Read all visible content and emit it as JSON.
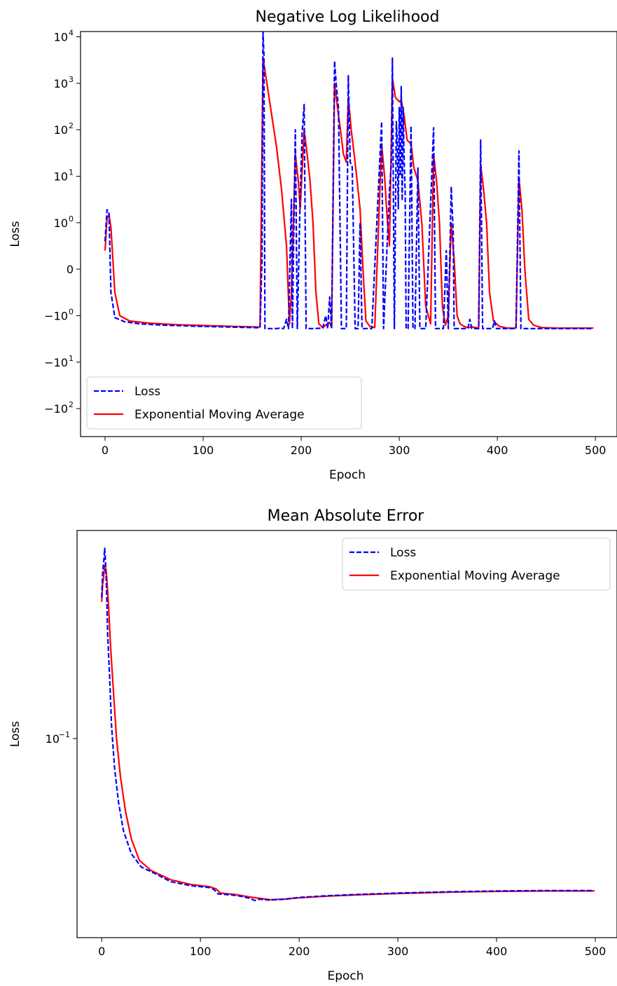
{
  "chart_data": [
    {
      "type": "line",
      "title": "Negative Log Likelihood",
      "xlabel": "Epoch",
      "ylabel": "Loss",
      "yscale": "symlog",
      "xlim": [
        -25,
        522
      ],
      "ylim": [
        -400,
        13000
      ],
      "xticks": [
        0,
        100,
        200,
        300,
        400,
        500
      ],
      "yticks": [
        {
          "value": 10000,
          "label": "10",
          "exp": "4"
        },
        {
          "value": 1000,
          "label": "10",
          "exp": "3"
        },
        {
          "value": 100,
          "label": "10",
          "exp": "2"
        },
        {
          "value": 10,
          "label": "10",
          "exp": "1"
        },
        {
          "value": 1,
          "label": "10",
          "exp": "0"
        },
        {
          "value": 0,
          "label": "0",
          "exp": ""
        },
        {
          "value": -1,
          "label": "−10",
          "exp": "0"
        },
        {
          "value": -10,
          "label": "−10",
          "exp": "1"
        },
        {
          "value": -100,
          "label": "−10",
          "exp": "2"
        }
      ],
      "legend": "lower-left",
      "series": [
        {
          "name": "Loss",
          "color": "#0000ff",
          "style": "dashed",
          "points": [
            [
              0,
              0.6
            ],
            [
              2,
              1.9
            ],
            [
              4,
              1.7
            ],
            [
              6,
              -0.5
            ],
            [
              10,
              -1.1
            ],
            [
              20,
              -1.35
            ],
            [
              35,
              -1.5
            ],
            [
              60,
              -1.6
            ],
            [
              90,
              -1.68
            ],
            [
              110,
              -1.72
            ],
            [
              140,
              -1.78
            ],
            [
              158,
              -1.82
            ],
            [
              160,
              0.2
            ],
            [
              161,
              13000
            ],
            [
              162,
              4000
            ],
            [
              163,
              -1.9
            ],
            [
              175,
              -1.9
            ],
            [
              178,
              -1.85
            ],
            [
              182,
              -1.9
            ],
            [
              185,
              -1.2
            ],
            [
              187,
              -1.9
            ],
            [
              190,
              3.2
            ],
            [
              191,
              -1.9
            ],
            [
              194,
              100
            ],
            [
              196,
              -1.9
            ],
            [
              199,
              4
            ],
            [
              201,
              90
            ],
            [
              203,
              350
            ],
            [
              205,
              -1.9
            ],
            [
              212,
              -1.9
            ],
            [
              222,
              -1.85
            ],
            [
              225,
              -1.0
            ],
            [
              227,
              -1.9
            ],
            [
              229,
              -0.6
            ],
            [
              231,
              -1.9
            ],
            [
              234,
              3000
            ],
            [
              236,
              800
            ],
            [
              238,
              300
            ],
            [
              241,
              -1.9
            ],
            [
              246,
              -1.9
            ],
            [
              248,
              1500
            ],
            [
              250,
              20
            ],
            [
              252,
              16
            ],
            [
              255,
              -1.9
            ],
            [
              258,
              -1.9
            ],
            [
              260,
              1.0
            ],
            [
              262,
              -1.9
            ],
            [
              272,
              -1.9
            ],
            [
              282,
              150
            ],
            [
              284,
              -1.9
            ],
            [
              290,
              5
            ],
            [
              292,
              20
            ],
            [
              293,
              3500
            ],
            [
              295,
              -1.9
            ],
            [
              297,
              150
            ],
            [
              298,
              50
            ],
            [
              299,
              2
            ],
            [
              300,
              300
            ],
            [
              301,
              10
            ],
            [
              302,
              850
            ],
            [
              303,
              3
            ],
            [
              304,
              300
            ],
            [
              305,
              20
            ],
            [
              306,
              5
            ],
            [
              307,
              -1.9
            ],
            [
              309,
              -1.9
            ],
            [
              312,
              120
            ],
            [
              314,
              -1.9
            ],
            [
              316,
              -1.9
            ],
            [
              319,
              15
            ],
            [
              321,
              -1.9
            ],
            [
              327,
              -1.9
            ],
            [
              335,
              110
            ],
            [
              337,
              -1.9
            ],
            [
              345,
              -1.9
            ],
            [
              348,
              0.4
            ],
            [
              350,
              -1.9
            ],
            [
              353,
              6
            ],
            [
              355,
              0.8
            ],
            [
              356,
              -1.9
            ],
            [
              358,
              -1.9
            ],
            [
              370,
              -1.9
            ],
            [
              372,
              -1.2
            ],
            [
              374,
              -1.9
            ],
            [
              381,
              -1.9
            ],
            [
              383,
              60
            ],
            [
              385,
              -1.9
            ],
            [
              395,
              -1.9
            ],
            [
              397,
              -1.3
            ],
            [
              399,
              -1.9
            ],
            [
              419,
              -1.9
            ],
            [
              422,
              35
            ],
            [
              424,
              -1.9
            ],
            [
              450,
              -1.9
            ],
            [
              475,
              -1.9
            ],
            [
              498,
              -1.9
            ]
          ]
        },
        {
          "name": "Exponential Moving Average",
          "color": "#ff0000",
          "style": "solid",
          "points": [
            [
              0,
              0.4
            ],
            [
              2,
              1.2
            ],
            [
              4,
              1.5
            ],
            [
              6,
              0.9
            ],
            [
              10,
              -0.5
            ],
            [
              15,
              -1.0
            ],
            [
              25,
              -1.3
            ],
            [
              45,
              -1.45
            ],
            [
              70,
              -1.55
            ],
            [
              100,
              -1.63
            ],
            [
              130,
              -1.7
            ],
            [
              155,
              -1.75
            ],
            [
              158,
              -1.76
            ],
            [
              161,
              3500
            ],
            [
              165,
              1000
            ],
            [
              170,
              200
            ],
            [
              175,
              40
            ],
            [
              180,
              5
            ],
            [
              185,
              0.5
            ],
            [
              188,
              -1.5
            ],
            [
              190,
              -0.5
            ],
            [
              194,
              30
            ],
            [
              197,
              8
            ],
            [
              199,
              2
            ],
            [
              203,
              100
            ],
            [
              206,
              30
            ],
            [
              209,
              8
            ],
            [
              212,
              1
            ],
            [
              215,
              -0.5
            ],
            [
              218,
              -1.5
            ],
            [
              222,
              -1.8
            ],
            [
              225,
              -1.6
            ],
            [
              229,
              -1.4
            ],
            [
              231,
              -1.8
            ],
            [
              234,
              1000
            ],
            [
              237,
              300
            ],
            [
              240,
              100
            ],
            [
              243,
              30
            ],
            [
              246,
              20
            ],
            [
              248,
              500
            ],
            [
              251,
              100
            ],
            [
              254,
              30
            ],
            [
              257,
              8
            ],
            [
              260,
              2
            ],
            [
              263,
              0
            ],
            [
              266,
              -1.3
            ],
            [
              270,
              -1.7
            ],
            [
              275,
              -1.8
            ],
            [
              282,
              50
            ],
            [
              285,
              10
            ],
            [
              288,
              1
            ],
            [
              290,
              0.5
            ],
            [
              293,
              1300
            ],
            [
              296,
              500
            ],
            [
              300,
              400
            ],
            [
              302,
              450
            ],
            [
              305,
              200
            ],
            [
              308,
              60
            ],
            [
              312,
              50
            ],
            [
              315,
              15
            ],
            [
              319,
              8
            ],
            [
              323,
              1
            ],
            [
              327,
              -0.8
            ],
            [
              332,
              -1.5
            ],
            [
              335,
              30
            ],
            [
              338,
              8
            ],
            [
              341,
              1
            ],
            [
              344,
              -0.8
            ],
            [
              347,
              -1.6
            ],
            [
              350,
              -1.0
            ],
            [
              353,
              1.0
            ],
            [
              356,
              0.2
            ],
            [
              359,
              -1.0
            ],
            [
              362,
              -1.5
            ],
            [
              366,
              -1.7
            ],
            [
              370,
              -1.8
            ],
            [
              375,
              -1.75
            ],
            [
              381,
              -1.85
            ],
            [
              383,
              18
            ],
            [
              386,
              5
            ],
            [
              389,
              1
            ],
            [
              392,
              -0.5
            ],
            [
              396,
              -1.3
            ],
            [
              402,
              -1.7
            ],
            [
              410,
              -1.85
            ],
            [
              419,
              -1.85
            ],
            [
              422,
              9
            ],
            [
              425,
              2
            ],
            [
              428,
              0
            ],
            [
              432,
              -1.2
            ],
            [
              437,
              -1.6
            ],
            [
              445,
              -1.8
            ],
            [
              460,
              -1.85
            ],
            [
              480,
              -1.85
            ],
            [
              498,
              -1.85
            ]
          ]
        }
      ]
    },
    {
      "type": "line",
      "title": "Mean Absolute Error",
      "xlabel": "Epoch",
      "ylabel": "Loss",
      "yscale": "log",
      "xlim": [
        -25,
        522
      ],
      "ylim": [
        0.0223,
        0.48
      ],
      "xticks": [
        0,
        100,
        200,
        300,
        400,
        500
      ],
      "yticks": [
        {
          "value": 0.1,
          "label": "10",
          "exp": "−1"
        }
      ],
      "legend": "upper-right",
      "series": [
        {
          "name": "Loss",
          "color": "#0000ff",
          "style": "dashed",
          "points": [
            [
              0,
              0.29
            ],
            [
              1,
              0.35
            ],
            [
              2,
              0.38
            ],
            [
              3,
              0.42
            ],
            [
              4,
              0.37
            ],
            [
              5,
              0.3
            ],
            [
              6,
              0.22
            ],
            [
              8,
              0.16
            ],
            [
              10,
              0.11
            ],
            [
              13,
              0.08
            ],
            [
              17,
              0.062
            ],
            [
              22,
              0.05
            ],
            [
              30,
              0.042
            ],
            [
              40,
              0.038
            ],
            [
              55,
              0.036
            ],
            [
              70,
              0.034
            ],
            [
              90,
              0.033
            ],
            [
              110,
              0.0325
            ],
            [
              114,
              0.032
            ],
            [
              118,
              0.031
            ],
            [
              130,
              0.0308
            ],
            [
              140,
              0.0305
            ],
            [
              150,
              0.03
            ],
            [
              155,
              0.0295
            ],
            [
              160,
              0.0298
            ],
            [
              170,
              0.0296
            ],
            [
              185,
              0.0298
            ],
            [
              200,
              0.0302
            ],
            [
              230,
              0.0306
            ],
            [
              260,
              0.0309
            ],
            [
              300,
              0.0312
            ],
            [
              350,
              0.0315
            ],
            [
              400,
              0.0317
            ],
            [
              450,
              0.0318
            ],
            [
              499,
              0.0318
            ]
          ]
        },
        {
          "name": "Exponential Moving Average",
          "color": "#ff0000",
          "style": "solid",
          "points": [
            [
              0,
              0.28
            ],
            [
              1,
              0.32
            ],
            [
              2,
              0.34
            ],
            [
              3,
              0.37
            ],
            [
              4,
              0.36
            ],
            [
              5,
              0.34
            ],
            [
              7,
              0.27
            ],
            [
              9,
              0.2
            ],
            [
              12,
              0.14
            ],
            [
              15,
              0.1
            ],
            [
              19,
              0.075
            ],
            [
              24,
              0.058
            ],
            [
              30,
              0.047
            ],
            [
              38,
              0.04
            ],
            [
              50,
              0.037
            ],
            [
              70,
              0.0345
            ],
            [
              90,
              0.0333
            ],
            [
              110,
              0.0327
            ],
            [
              116,
              0.0322
            ],
            [
              120,
              0.0312
            ],
            [
              135,
              0.0309
            ],
            [
              150,
              0.0303
            ],
            [
              160,
              0.03
            ],
            [
              170,
              0.0297
            ],
            [
              185,
              0.0298
            ],
            [
              200,
              0.0301
            ],
            [
              230,
              0.0305
            ],
            [
              260,
              0.0308
            ],
            [
              300,
              0.0311
            ],
            [
              350,
              0.0314
            ],
            [
              400,
              0.0316
            ],
            [
              450,
              0.0317
            ],
            [
              499,
              0.0317
            ]
          ]
        }
      ]
    }
  ]
}
